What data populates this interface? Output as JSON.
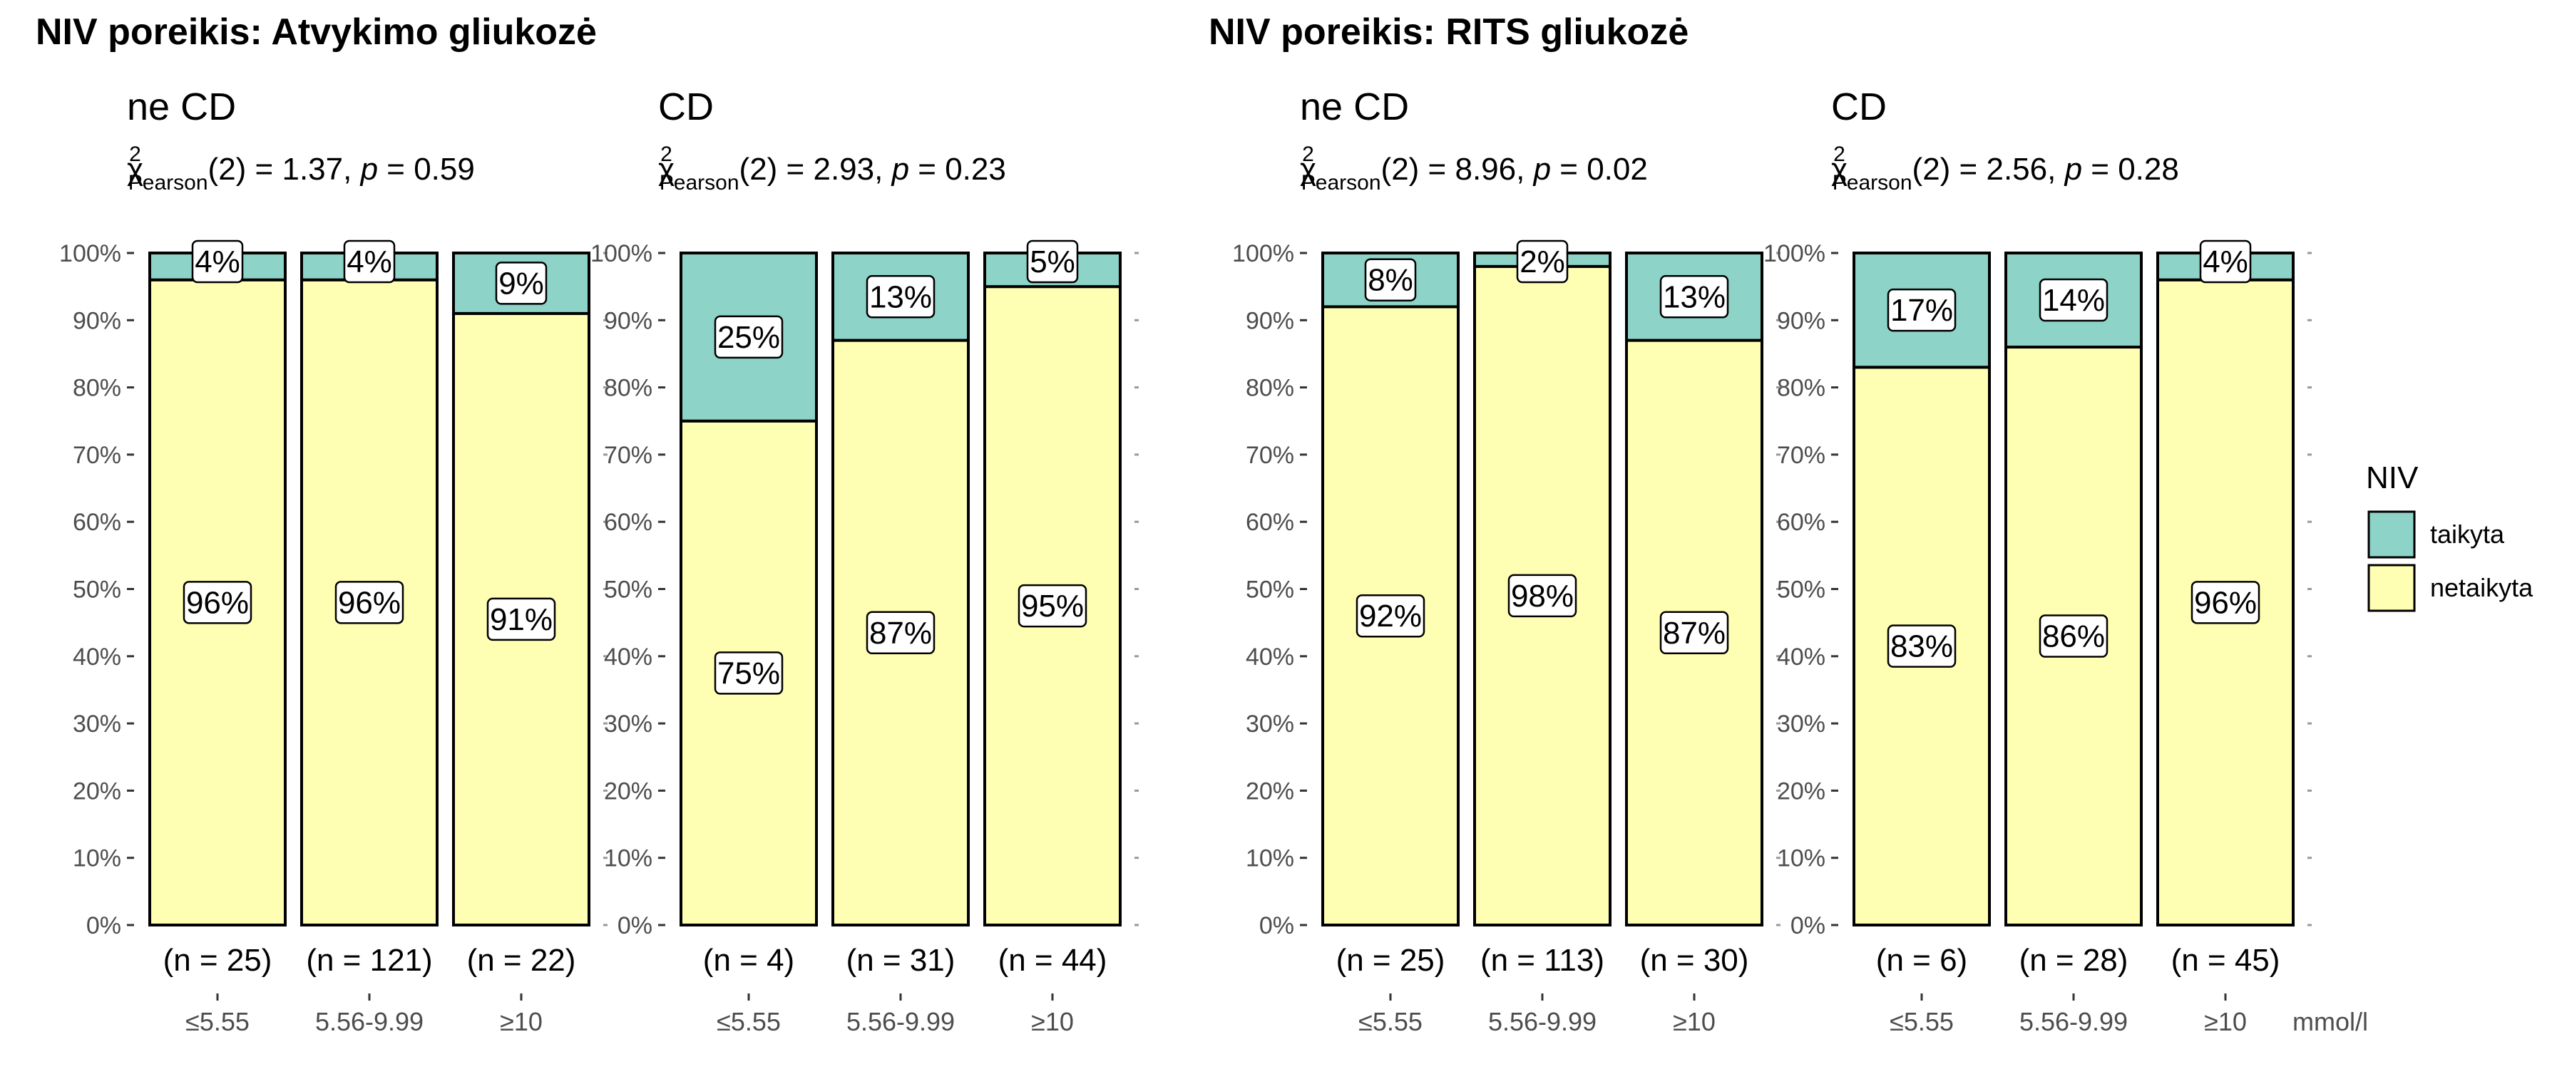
{
  "x_unit": "mmol/l",
  "legend": {
    "title": "NIV",
    "items": [
      {
        "label": "taikyta",
        "color": "#8dd3c7"
      },
      {
        "label": "netaikyta",
        "color": "#ffffb3"
      }
    ]
  },
  "chart_data": [
    {
      "type": "bar",
      "group_title": "NIV poreikis: Atvykimo gliukozė",
      "panels": [
        {
          "title": "ne CD",
          "stat": {
            "dist": "χ",
            "sup": "2",
            "sub": "Pearson",
            "rest": "(2) = 1.37, ",
            "p_label": "p",
            "p_value": " = 0.59"
          },
          "categories": [
            "≤5.55",
            "5.56-9.99",
            "≥10"
          ],
          "n_labels": [
            "(n = 25)",
            "(n = 121)",
            "(n = 22)"
          ],
          "series": [
            {
              "name": "netaikyta",
              "values": [
                96,
                96,
                91
              ],
              "labels": [
                "96%",
                "96%",
                "91%"
              ]
            },
            {
              "name": "taikyta",
              "values": [
                4,
                4,
                9
              ],
              "labels": [
                "4%",
                "4%",
                "9%"
              ]
            }
          ]
        },
        {
          "title": "CD",
          "stat": {
            "dist": "χ",
            "sup": "2",
            "sub": "Pearson",
            "rest": "(2) = 2.93, ",
            "p_label": "p",
            "p_value": " = 0.23"
          },
          "categories": [
            "≤5.55",
            "5.56-9.99",
            "≥10"
          ],
          "n_labels": [
            "(n = 4)",
            "(n = 31)",
            "(n = 44)"
          ],
          "series": [
            {
              "name": "netaikyta",
              "values": [
                75,
                87,
                95
              ],
              "labels": [
                "75%",
                "87%",
                "95%"
              ]
            },
            {
              "name": "taikyta",
              "values": [
                25,
                13,
                5
              ],
              "labels": [
                "25%",
                "13%",
                "5%"
              ]
            }
          ]
        }
      ]
    },
    {
      "type": "bar",
      "group_title": "NIV poreikis: RITS gliukozė",
      "panels": [
        {
          "title": "ne CD",
          "stat": {
            "dist": "χ",
            "sup": "2",
            "sub": "Pearson",
            "rest": "(2) = 8.96, ",
            "p_label": "p",
            "p_value": " = 0.02"
          },
          "categories": [
            "≤5.55",
            "5.56-9.99",
            "≥10"
          ],
          "n_labels": [
            "(n = 25)",
            "(n = 113)",
            "(n = 30)"
          ],
          "series": [
            {
              "name": "netaikyta",
              "values": [
                92,
                98,
                87
              ],
              "labels": [
                "92%",
                "98%",
                "87%"
              ]
            },
            {
              "name": "taikyta",
              "values": [
                8,
                2,
                13
              ],
              "labels": [
                "8%",
                "2%",
                "13%"
              ]
            }
          ]
        },
        {
          "title": "CD",
          "stat": {
            "dist": "χ",
            "sup": "2",
            "sub": "Pearson",
            "rest": "(2) = 2.56, ",
            "p_label": "p",
            "p_value": " = 0.28"
          },
          "categories": [
            "≤5.55",
            "5.56-9.99",
            "≥10"
          ],
          "n_labels": [
            "(n = 6)",
            "(n = 28)",
            "(n = 45)"
          ],
          "series": [
            {
              "name": "netaikyta",
              "values": [
                83,
                86,
                96
              ],
              "labels": [
                "83%",
                "86%",
                "96%"
              ]
            },
            {
              "name": "taikyta",
              "values": [
                17,
                14,
                4
              ],
              "labels": [
                "17%",
                "14%",
                "4%"
              ]
            }
          ]
        }
      ]
    }
  ],
  "y_axis": {
    "ylim": [
      0,
      100
    ],
    "ticks": [
      0,
      10,
      20,
      30,
      40,
      50,
      60,
      70,
      80,
      90,
      100
    ],
    "tick_labels": [
      "0%",
      "10%",
      "20%",
      "30%",
      "40%",
      "50%",
      "60%",
      "70%",
      "80%",
      "90%",
      "100%"
    ]
  }
}
